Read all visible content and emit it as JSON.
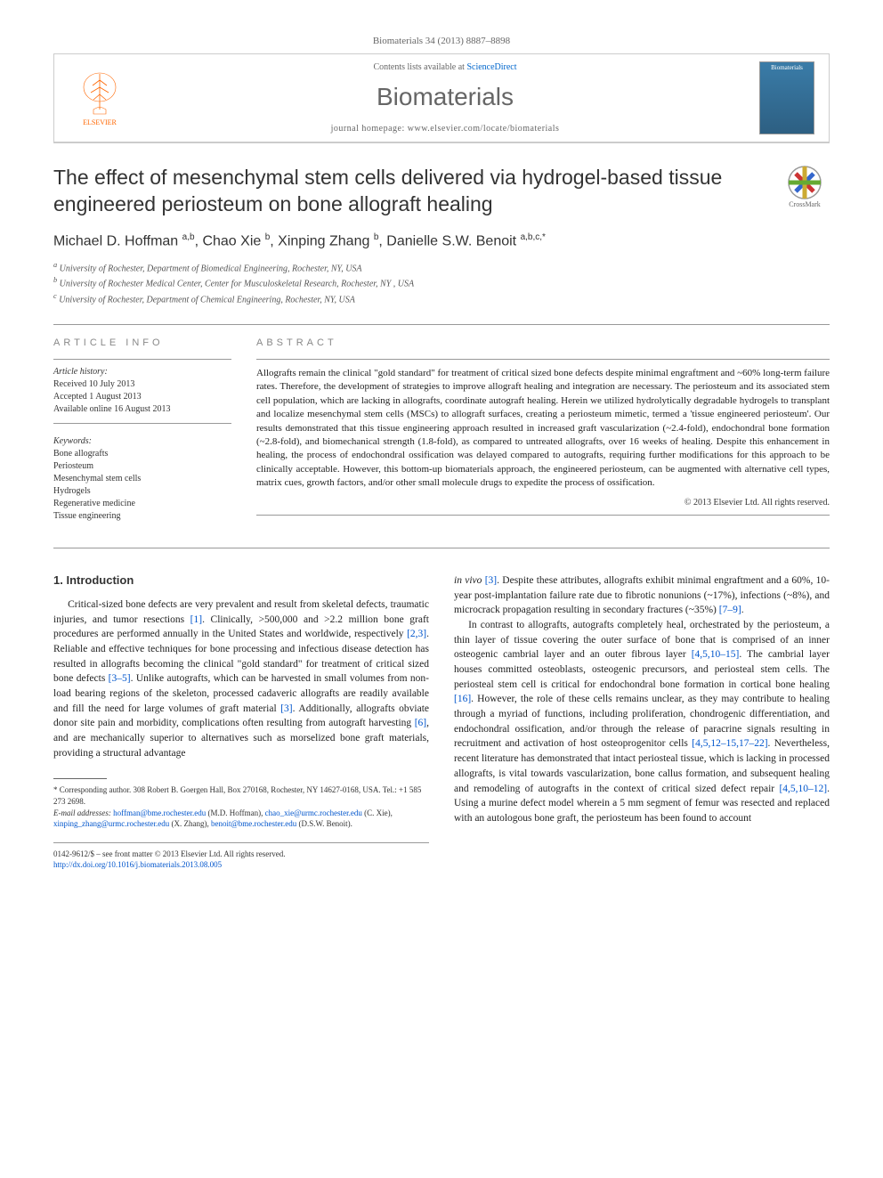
{
  "citation": "Biomaterials 34 (2013) 8887–8898",
  "header": {
    "publisher_name": "ELSEVIER",
    "contents_text": "Contents lists available at ",
    "contents_link": "ScienceDirect",
    "journal_name": "Biomaterials",
    "homepage_label": "journal homepage: ",
    "homepage_url": "www.elsevier.com/locate/biomaterials",
    "cover_label": "Biomaterials"
  },
  "title": "The effect of mesenchymal stem cells delivered via hydrogel-based tissue engineered periosteum on bone allograft healing",
  "crossmark_label": "CrossMark",
  "authors_html": "Michael D. Hoffman <sup>a,b</sup>, Chao Xie <sup>b</sup>, Xinping Zhang <sup>b</sup>, Danielle S.W. Benoit <sup>a,b,c,*</sup>",
  "affiliations": [
    "a University of Rochester, Department of Biomedical Engineering, Rochester, NY, USA",
    "b University of Rochester Medical Center, Center for Musculoskeletal Research, Rochester, NY , USA",
    "c University of Rochester, Department of Chemical Engineering, Rochester, NY, USA"
  ],
  "info": {
    "section_label": "ARTICLE INFO",
    "history_label": "Article history:",
    "history": [
      "Received 10 July 2013",
      "Accepted 1 August 2013",
      "Available online 16 August 2013"
    ],
    "keywords_label": "Keywords:",
    "keywords": [
      "Bone allografts",
      "Periosteum",
      "Mesenchymal stem cells",
      "Hydrogels",
      "Regenerative medicine",
      "Tissue engineering"
    ]
  },
  "abstract": {
    "section_label": "ABSTRACT",
    "text": "Allografts remain the clinical \"gold standard\" for treatment of critical sized bone defects despite minimal engraftment and ~60% long-term failure rates. Therefore, the development of strategies to improve allograft healing and integration are necessary. The periosteum and its associated stem cell population, which are lacking in allografts, coordinate autograft healing. Herein we utilized hydrolytically degradable hydrogels to transplant and localize mesenchymal stem cells (MSCs) to allograft surfaces, creating a periosteum mimetic, termed a 'tissue engineered periosteum'. Our results demonstrated that this tissue engineering approach resulted in increased graft vascularization (~2.4-fold), endochondral bone formation (~2.8-fold), and biomechanical strength (1.8-fold), as compared to untreated allografts, over 16 weeks of healing. Despite this enhancement in healing, the process of endochondral ossification was delayed compared to autografts, requiring further modifications for this approach to be clinically acceptable. However, this bottom-up biomaterials approach, the engineered periosteum, can be augmented with alternative cell types, matrix cues, growth factors, and/or other small molecule drugs to expedite the process of ossification.",
    "copyright": "© 2013 Elsevier Ltd. All rights reserved."
  },
  "body": {
    "heading": "1. Introduction",
    "col1_p1_pre": "Critical-sized bone defects are very prevalent and result from skeletal defects, traumatic injuries, and tumor resections ",
    "col1_p1_ref1": "[1]",
    "col1_p1_mid1": ". Clinically, >500,000 and >2.2 million bone graft procedures are performed annually in the United States and worldwide, respectively ",
    "col1_p1_ref2": "[2,3]",
    "col1_p1_mid2": ". Reliable and effective techniques for bone processing and infectious disease detection has resulted in allografts becoming the clinical \"gold standard\" for treatment of critical sized bone defects ",
    "col1_p1_ref3": "[3–5]",
    "col1_p1_mid3": ". Unlike autografts, which can be harvested in small volumes from non-load bearing regions of the skeleton, processed cadaveric allografts are readily available and fill the need for large volumes of graft material ",
    "col1_p1_ref4": "[3]",
    "col1_p1_mid4": ". Additionally, allografts obviate donor site pain and morbidity, complications often resulting from autograft harvesting ",
    "col1_p1_ref5": "[6]",
    "col1_p1_end": ", and are mechanically superior to alternatives such as morselized bone graft materials, providing a structural advantage",
    "col2_p1_pre": "in vivo ",
    "col2_p1_ref1": "[3]",
    "col2_p1_mid1": ". Despite these attributes, allografts exhibit minimal engraftment and a 60%, 10-year post-implantation failure rate due to fibrotic nonunions (~17%), infections (~8%), and microcrack propagation resulting in secondary fractures (~35%) ",
    "col2_p1_ref2": "[7–9]",
    "col2_p1_end": ".",
    "col2_p2_pre": "In contrast to allografts, autografts completely heal, orchestrated by the periosteum, a thin layer of tissue covering the outer surface of bone that is comprised of an inner osteogenic cambrial layer and an outer fibrous layer ",
    "col2_p2_ref1": "[4,5,10–15]",
    "col2_p2_mid1": ". The cambrial layer houses committed osteoblasts, osteogenic precursors, and periosteal stem cells. The periosteal stem cell is critical for endochondral bone formation in cortical bone healing ",
    "col2_p2_ref2": "[16]",
    "col2_p2_mid2": ". However, the role of these cells remains unclear, as they may contribute to healing through a myriad of functions, including proliferation, chondrogenic differentiation, and endochondral ossification, and/or through the release of paracrine signals resulting in recruitment and activation of host osteoprogenitor cells ",
    "col2_p2_ref3": "[4,5,12–15,17–22]",
    "col2_p2_mid3": ". Nevertheless, recent literature has demonstrated that intact periosteal tissue, which is lacking in processed allografts, is vital towards vascularization, bone callus formation, and subsequent healing and remodeling of autografts in the context of critical sized defect repair ",
    "col2_p2_ref4": "[4,5,10–12]",
    "col2_p2_end": ". Using a murine defect model wherein a 5 mm segment of femur was resected and replaced with an autologous bone graft, the periosteum has been found to account"
  },
  "footnotes": {
    "corresponding": "* Corresponding author. 308 Robert B. Goergen Hall, Box 270168, Rochester, NY 14627-0168, USA. Tel.: +1 585 273 2698.",
    "email_label": "E-mail addresses: ",
    "emails": [
      {
        "addr": "hoffman@bme.rochester.edu",
        "who": " (M.D. Hoffman), "
      },
      {
        "addr": "chao_xie@urmc.rochester.edu",
        "who": " (C. Xie), "
      },
      {
        "addr": "xinping_zhang@urmc.rochester.edu",
        "who": " (X. Zhang), "
      },
      {
        "addr": "benoit@bme.rochester.edu",
        "who": " (D.S.W. Benoit)."
      }
    ]
  },
  "footer": {
    "issn": "0142-9612/$ – see front matter © 2013 Elsevier Ltd. All rights reserved.",
    "doi_label": "http://dx.doi.org/10.1016/j.biomaterials.2013.08.005"
  },
  "colors": {
    "link": "#0055cc",
    "publisher_orange": "#ff6600",
    "text": "#333333",
    "border": "#cccccc"
  }
}
